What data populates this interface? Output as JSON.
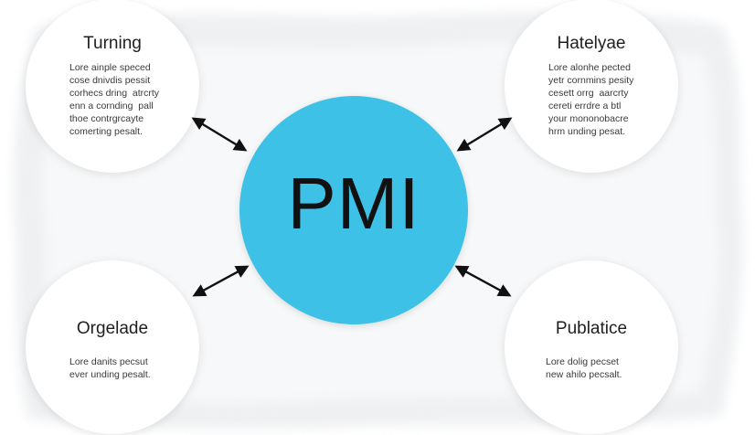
{
  "center": {
    "label": "PMI",
    "color": "#3ec1e6"
  },
  "nodes": {
    "top_left": {
      "title": "Turning",
      "body": "Lore ainple speced\ncose dnivdis pessit\ncorhecs dring  atrcrty\nenn a cornding  pall\nthoe contrgrcayte\ncomerting pesalt."
    },
    "top_right": {
      "title": "Hatelyae",
      "body": "Lore alonhe pected\nyetr cornmins pesity\ncesett orrg  aarcrty\ncereti errdre a btl\nyour mononobacre\nhrm unding pesat."
    },
    "bottom_left": {
      "title": "Orgelade",
      "body": "Lore danits pecsut\never unding pesalt."
    },
    "bottom_right": {
      "title": "Publatice",
      "body": "Lore dolig pecset\nnew ahilo pecsalt."
    }
  },
  "connectors": {
    "type": "double-headed-arrow",
    "color": "#111111"
  }
}
